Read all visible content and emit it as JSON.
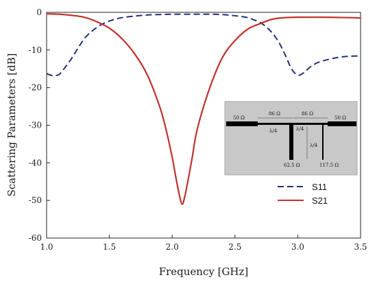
{
  "chart_data": {
    "type": "line",
    "xlabel": "Frequency [GHz]",
    "ylabel": "Scattering Parameters [dB]",
    "xlim": [
      1.0,
      3.5
    ],
    "ylim": [
      -60,
      0
    ],
    "xticks": [
      "1.0",
      "1.5",
      "2.0",
      "2.5",
      "3.0",
      "3.5"
    ],
    "yticks": [
      "0",
      "-10",
      "-20",
      "-30",
      "-40",
      "-50",
      "-60"
    ],
    "grid": false,
    "legend_position": "lower-right",
    "series": [
      {
        "name": "S11",
        "color": "#1f2f7a",
        "style": "dashed",
        "x": [
          1.0,
          1.05,
          1.1,
          1.15,
          1.2,
          1.25,
          1.3,
          1.35,
          1.4,
          1.45,
          1.5,
          1.55,
          1.6,
          1.7,
          1.8,
          1.9,
          2.0,
          2.1,
          2.2,
          2.3,
          2.4,
          2.5,
          2.6,
          2.65,
          2.7,
          2.75,
          2.8,
          2.85,
          2.9,
          2.95,
          3.0,
          3.05,
          3.1,
          3.15,
          3.2,
          3.3,
          3.4,
          3.5
        ],
        "y": [
          -16.3,
          -16.8,
          -16.5,
          -14.5,
          -12.2,
          -9.5,
          -7.0,
          -5.3,
          -4.0,
          -3.0,
          -2.3,
          -1.8,
          -1.4,
          -1.0,
          -0.7,
          -0.6,
          -0.5,
          -0.5,
          -0.5,
          -0.5,
          -0.6,
          -0.9,
          -1.4,
          -2.0,
          -2.7,
          -3.9,
          -5.6,
          -8.0,
          -11.3,
          -15.0,
          -16.7,
          -16.0,
          -14.5,
          -13.5,
          -12.9,
          -12.1,
          -11.7,
          -11.6
        ]
      },
      {
        "name": "S21",
        "color": "#c0312b",
        "style": "solid",
        "x": [
          1.0,
          1.1,
          1.2,
          1.3,
          1.4,
          1.5,
          1.6,
          1.7,
          1.8,
          1.9,
          1.95,
          2.0,
          2.03,
          2.06,
          2.08,
          2.1,
          2.13,
          2.16,
          2.2,
          2.3,
          2.4,
          2.5,
          2.6,
          2.7,
          2.8,
          2.9,
          3.0,
          3.2,
          3.4,
          3.5
        ],
        "y": [
          -0.4,
          -0.5,
          -0.8,
          -1.3,
          -2.5,
          -4.2,
          -7.0,
          -11.0,
          -16.5,
          -25.0,
          -31.0,
          -38.5,
          -44.0,
          -49.0,
          -51.0,
          -49.0,
          -44.0,
          -38.5,
          -31.0,
          -20.0,
          -12.0,
          -7.5,
          -4.5,
          -3.0,
          -1.8,
          -1.4,
          -1.3,
          -1.3,
          -1.4,
          -1.5
        ]
      }
    ],
    "inset": {
      "labels": [
        "50 Ω",
        "86 Ω",
        "86 Ω",
        "50 Ω",
        "λ/4",
        "λ/4",
        "λ/4",
        "62.5 Ω",
        "117.5 Ω"
      ]
    }
  }
}
